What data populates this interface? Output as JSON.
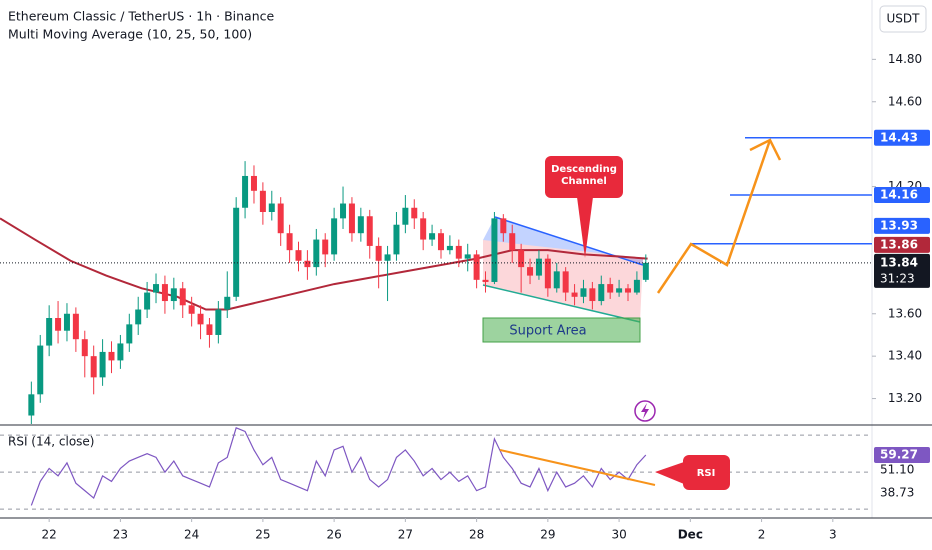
{
  "chart_data": [
    {
      "type": "candlestick",
      "title": "Ethereum Classic / TetherUS · 1h · Binance",
      "subtitle": "Multi Moving Average (10, 25, 50, 100)",
      "y_label": "USDT",
      "up_color": "#089981",
      "down_color": "#f23645",
      "x": [
        21.75,
        21.875,
        22,
        22.125,
        22.25,
        22.375,
        22.5,
        22.625,
        22.75,
        22.875,
        23,
        23.125,
        23.25,
        23.375,
        23.5,
        23.625,
        23.75,
        23.875,
        24,
        24.125,
        24.25,
        24.375,
        24.5,
        24.625,
        24.75,
        24.875,
        25,
        25.125,
        25.25,
        25.375,
        25.5,
        25.625,
        25.75,
        25.875,
        26,
        26.125,
        26.25,
        26.375,
        26.5,
        26.625,
        26.75,
        26.875,
        27,
        27.125,
        27.25,
        27.375,
        27.5,
        27.625,
        27.75,
        27.875,
        28,
        28.125,
        28.25,
        28.375,
        28.5,
        28.625,
        28.75,
        28.875,
        29,
        29.125,
        29.25,
        29.375,
        29.5,
        29.625,
        29.75,
        29.875,
        30,
        30.125,
        30.25,
        30.375
      ],
      "open": [
        13.12,
        13.22,
        13.45,
        13.58,
        13.52,
        13.6,
        13.48,
        13.4,
        13.3,
        13.42,
        13.38,
        13.46,
        13.55,
        13.62,
        13.7,
        13.74,
        13.66,
        13.72,
        13.64,
        13.6,
        13.55,
        13.5,
        13.62,
        13.68,
        14.1,
        14.25,
        14.18,
        14.08,
        14.12,
        13.98,
        13.9,
        13.85,
        13.82,
        13.95,
        13.88,
        14.05,
        14.12,
        13.98,
        14.06,
        13.92,
        13.85,
        13.88,
        14.02,
        14.1,
        14.05,
        13.95,
        13.98,
        13.9,
        13.92,
        13.86,
        13.88,
        13.76,
        13.75,
        14.05,
        13.98,
        13.9,
        13.82,
        13.78,
        13.86,
        13.72,
        13.8,
        13.7,
        13.68,
        13.72,
        13.66,
        13.74,
        13.7,
        13.72,
        13.7,
        13.76
      ],
      "high": [
        13.28,
        13.5,
        13.64,
        13.66,
        13.65,
        13.63,
        13.52,
        13.45,
        13.48,
        13.47,
        13.5,
        13.6,
        13.68,
        13.75,
        13.79,
        13.78,
        13.77,
        13.75,
        13.68,
        13.64,
        13.58,
        13.66,
        13.8,
        14.15,
        14.32,
        14.3,
        14.22,
        14.18,
        14.15,
        14.02,
        13.94,
        13.9,
        14,
        13.98,
        14.1,
        14.2,
        14.15,
        14.1,
        14.09,
        13.96,
        13.92,
        14.08,
        14.16,
        14.14,
        14.08,
        14.02,
        14,
        13.97,
        13.95,
        13.93,
        13.9,
        13.8,
        14.08,
        14.07,
        14.02,
        13.93,
        13.86,
        13.9,
        13.88,
        13.84,
        13.82,
        13.74,
        13.76,
        13.75,
        13.78,
        13.77,
        13.76,
        13.74,
        13.8,
        13.88
      ],
      "low": [
        13.08,
        13.18,
        13.4,
        13.46,
        13.47,
        13.42,
        13.3,
        13.22,
        13.26,
        13.32,
        13.34,
        13.42,
        13.5,
        13.58,
        13.65,
        13.6,
        13.62,
        13.58,
        13.54,
        13.48,
        13.44,
        13.46,
        13.58,
        13.66,
        14.05,
        14.12,
        14.02,
        14.04,
        13.92,
        13.84,
        13.8,
        13.76,
        13.78,
        13.82,
        13.85,
        14,
        13.94,
        13.94,
        13.86,
        13.72,
        13.66,
        13.85,
        13.98,
        14,
        13.9,
        13.92,
        13.86,
        13.88,
        13.82,
        13.8,
        13.72,
        13.7,
        13.74,
        13.94,
        13.84,
        13.7,
        13.74,
        13.76,
        13.68,
        13.7,
        13.66,
        13.64,
        13.65,
        13.62,
        13.64,
        13.67,
        13.68,
        13.66,
        13.69,
        13.75
      ],
      "close": [
        13.22,
        13.45,
        13.58,
        13.52,
        13.6,
        13.48,
        13.4,
        13.3,
        13.42,
        13.38,
        13.46,
        13.55,
        13.62,
        13.7,
        13.74,
        13.66,
        13.72,
        13.64,
        13.6,
        13.55,
        13.5,
        13.62,
        13.68,
        14.1,
        14.25,
        14.18,
        14.08,
        14.12,
        13.98,
        13.9,
        13.85,
        13.82,
        13.95,
        13.88,
        14.05,
        14.12,
        13.98,
        14.06,
        13.92,
        13.85,
        13.88,
        14.02,
        14.1,
        14.05,
        13.95,
        13.98,
        13.9,
        13.92,
        13.86,
        13.88,
        13.76,
        13.75,
        14.05,
        13.98,
        13.9,
        13.82,
        13.78,
        13.86,
        13.72,
        13.8,
        13.7,
        13.68,
        13.72,
        13.66,
        13.74,
        13.7,
        13.72,
        13.7,
        13.76,
        13.84
      ],
      "countdown": "31:23",
      "moving_average": {
        "color": "#b2283a",
        "x": [
          21.31,
          21.8,
          22.3,
          22.8,
          23.3,
          23.8,
          24.2,
          24.5,
          25,
          25.5,
          26,
          26.5,
          27,
          27.5,
          28,
          28.5,
          29,
          29.5,
          30,
          30.4
        ],
        "values": [
          14.05,
          13.95,
          13.85,
          13.78,
          13.72,
          13.68,
          13.62,
          13.62,
          13.66,
          13.7,
          13.74,
          13.77,
          13.8,
          13.83,
          13.86,
          13.9,
          13.9,
          13.88,
          13.87,
          13.86
        ]
      },
      "levels": [
        {
          "value": 14.43,
          "color": "#2962ff"
        },
        {
          "value": 14.16,
          "color": "#2962ff"
        },
        {
          "value": 13.93,
          "color": "#2962ff"
        }
      ],
      "ylim": [
        13.08,
        15.08
      ],
      "yticks": [
        {
          "value": 13.2,
          "label": "13.20"
        },
        {
          "value": 13.4,
          "label": "13.40"
        },
        {
          "value": 13.6,
          "label": "13.60"
        },
        {
          "value": 14.2,
          "label": "14.20"
        },
        {
          "value": 14.6,
          "label": "14.60"
        },
        {
          "value": 14.8,
          "label": "14.80"
        }
      ],
      "xlim": [
        21.31,
        33.55
      ],
      "xticks": [
        22,
        23,
        24,
        25,
        26,
        27,
        28,
        29,
        30,
        {
          "value": 31,
          "label": "Dec"
        },
        {
          "value": 32,
          "label": "2"
        },
        {
          "value": 33,
          "label": "3"
        }
      ],
      "annotations": [
        "Descending Channel",
        "Suport Area"
      ]
    },
    {
      "type": "line",
      "title": "RSI (14, close)",
      "color": "#7e57c2",
      "values": [
        32,
        45,
        52,
        48,
        55,
        44,
        40,
        36,
        48,
        45,
        52,
        56,
        58,
        60,
        58,
        50,
        56,
        48,
        46,
        44,
        42,
        55,
        58,
        74,
        72,
        62,
        54,
        58,
        46,
        44,
        42,
        40,
        56,
        48,
        62,
        64,
        50,
        58,
        46,
        42,
        46,
        58,
        62,
        56,
        48,
        52,
        46,
        50,
        45,
        48,
        40,
        42,
        68,
        58,
        52,
        44,
        42,
        52,
        40,
        50,
        42,
        44,
        48,
        42,
        52,
        46,
        50,
        46,
        54,
        59.27
      ],
      "bands": [
        70,
        50,
        30
      ],
      "markers": [
        {
          "value": 51.1,
          "label": "51.10"
        },
        38.73
      ],
      "ylim": [
        25.2,
        75.5
      ],
      "annotation": "RSI"
    }
  ]
}
